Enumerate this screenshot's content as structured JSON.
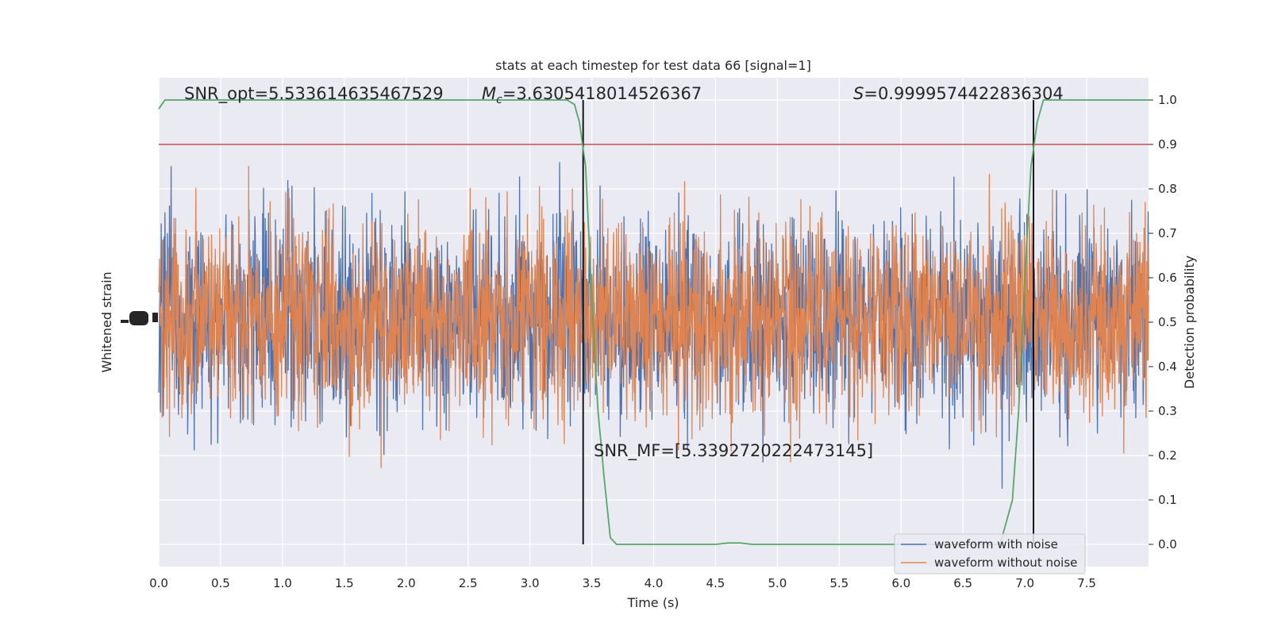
{
  "chart_data": {
    "type": "line",
    "title": "stats at each timestep for test data 66 [signal=1]",
    "xlabel": "Time (s)",
    "ylabel_left": "Whitened strain",
    "ylabel_right": "Detection probability",
    "xlim": [
      0.0,
      8.0
    ],
    "ylim_right": [
      -0.05,
      1.05
    ],
    "xticks": [
      0.0,
      0.5,
      1.0,
      1.5,
      2.0,
      2.5,
      3.0,
      3.5,
      4.0,
      4.5,
      5.0,
      5.5,
      6.0,
      6.5,
      7.0,
      7.5
    ],
    "xtick_labels": [
      "0.0",
      "0.5",
      "1.0",
      "1.5",
      "2.0",
      "2.5",
      "3.0",
      "3.5",
      "4.0",
      "4.5",
      "5.0",
      "5.5",
      "6.0",
      "6.5",
      "7.0",
      "7.5"
    ],
    "yticks_right": [
      0.0,
      0.1,
      0.2,
      0.3,
      0.4,
      0.5,
      0.6,
      0.7,
      0.8,
      0.9,
      1.0
    ],
    "ytick_labels_right": [
      "0.0",
      "0.1",
      "0.2",
      "0.3",
      "0.4",
      "0.5",
      "0.6",
      "0.7",
      "0.8",
      "0.9",
      "1.0"
    ],
    "grid": true,
    "legend_position": "lower-right",
    "annotations": {
      "snr_opt": "SNR_opt=5.533614635467529",
      "mc_prefix": "M",
      "mc_sub": "c",
      "mc_value": "=3.6305418014526367",
      "s_prefix": "S",
      "s_value": "=0.9999574422836304",
      "snr_mf": "SNR_MF=[5.339272022247314​5]"
    },
    "threshold": {
      "value": 0.9,
      "color": "#c44e52"
    },
    "vertical_lines": [
      3.43,
      7.07
    ],
    "series": [
      {
        "name": "waveform with noise",
        "color": "#4c72b0",
        "kind": "strain"
      },
      {
        "name": "waveform without noise",
        "color": "#dd8452",
        "kind": "strain"
      },
      {
        "name": "",
        "color": "#55a868",
        "kind": "probability",
        "x": [
          0.0,
          0.05,
          0.5,
          1.0,
          1.5,
          2.0,
          2.5,
          3.0,
          3.3,
          3.36,
          3.4,
          3.45,
          3.5,
          3.55,
          3.6,
          3.65,
          3.7,
          3.8,
          4.0,
          4.3,
          4.5,
          4.6,
          4.7,
          4.8,
          5.0,
          5.5,
          6.0,
          6.3,
          6.6,
          6.8,
          6.9,
          6.95,
          7.0,
          7.05,
          7.1,
          7.15,
          7.5,
          8.0
        ],
        "y": [
          0.98,
          1.0,
          1.0,
          1.0,
          1.0,
          1.0,
          1.0,
          1.0,
          1.0,
          0.99,
          0.95,
          0.85,
          0.55,
          0.3,
          0.15,
          0.015,
          0.0,
          0.0,
          0.0,
          0.0,
          0.0,
          0.003,
          0.003,
          0.0,
          0.0,
          0.0,
          0.0,
          0.0,
          0.0,
          0.0,
          0.1,
          0.3,
          0.6,
          0.85,
          0.95,
          1.0,
          1.0,
          1.0
        ]
      }
    ],
    "legend": [
      "waveform with noise",
      "waveform without noise"
    ]
  }
}
